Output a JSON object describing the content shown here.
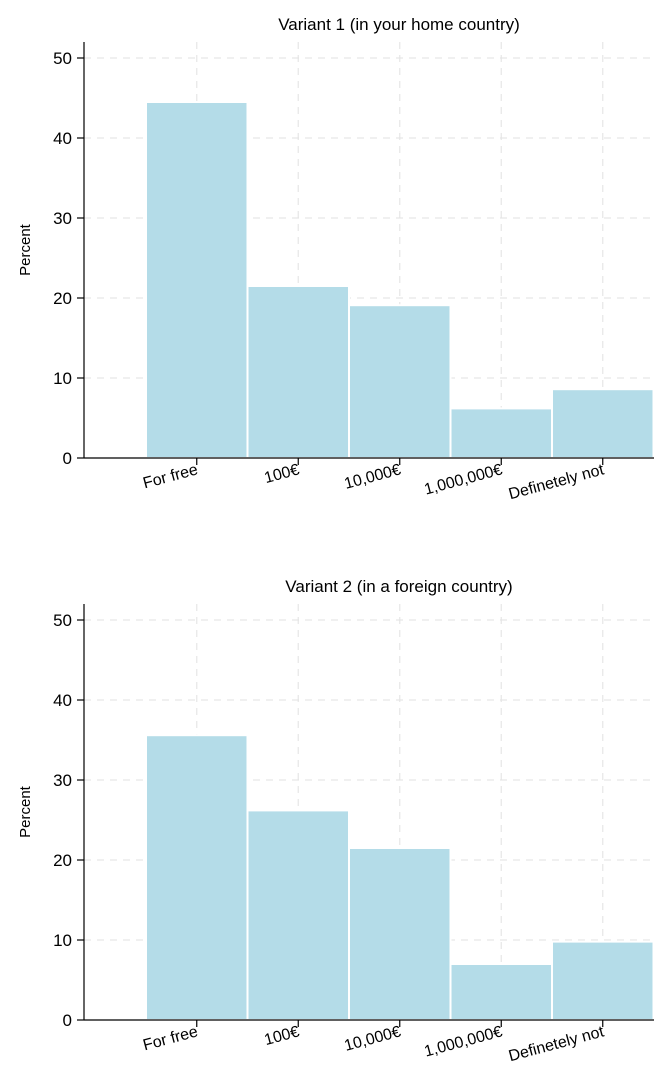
{
  "chart_data": [
    {
      "type": "bar",
      "title": "Variant 1 (in your home country)",
      "xlabel": "",
      "ylabel": "Percent",
      "categories": [
        "For free",
        "100€",
        "10,000€",
        "1,000,000€",
        "Definetely not"
      ],
      "values": [
        44.5,
        21.5,
        19.1,
        6.2,
        8.6
      ],
      "ylim": [
        0,
        52
      ],
      "yticks": [
        0,
        10,
        20,
        30,
        40,
        50
      ],
      "bar_color": "#b4dce8",
      "grid": true
    },
    {
      "type": "bar",
      "title": "Variant 2 (in a foreign country)",
      "xlabel": "",
      "ylabel": "Percent",
      "categories": [
        "For free",
        "100€",
        "10,000€",
        "1,000,000€",
        "Definetely not"
      ],
      "values": [
        35.6,
        26.2,
        21.5,
        7.0,
        9.8
      ],
      "ylim": [
        0,
        52
      ],
      "yticks": [
        0,
        10,
        20,
        30,
        40,
        50
      ],
      "bar_color": "#b4dce8",
      "grid": true
    }
  ]
}
